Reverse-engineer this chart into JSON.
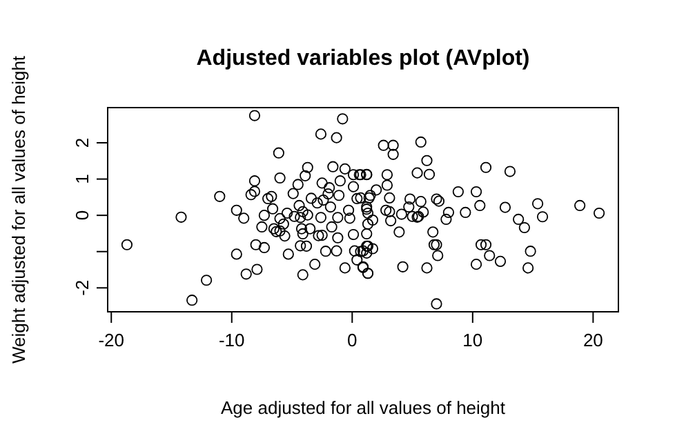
{
  "chart_data": {
    "type": "scatter",
    "title": "Adjusted variables plot (AVplot)",
    "xlabel": "Age adjusted for all values of height",
    "ylabel": "Weight adjusted for all values of height",
    "xlim": [
      -20.3,
      22.1
    ],
    "ylim": [
      -2.66,
      2.97
    ],
    "xticks": [
      -20,
      -10,
      0,
      10,
      20
    ],
    "yticks": [
      -2,
      {
        "value": -1,
        "label": null
      },
      0,
      1,
      2
    ],
    "grid": false,
    "marker": "circle",
    "x": [
      -18.7,
      -14.2,
      -13.3,
      -12.1,
      -11.0,
      -9.6,
      -9.6,
      -9.0,
      -8.8,
      -8.1,
      -8.1,
      -8.1,
      -8.4,
      -8.0,
      -7.9,
      -7.5,
      -7.3,
      -7.3,
      -7.0,
      -6.7,
      -6.6,
      -6.1,
      -6.0,
      -6.5,
      -6.3,
      -6.0,
      -5.6,
      -5.7,
      -6.0,
      -5.3,
      -5.4,
      -4.9,
      -4.8,
      -4.5,
      -4.4,
      -4.3,
      -4.2,
      -4.1,
      -4.3,
      -4.1,
      -3.9,
      -3.7,
      -3.8,
      -4.1,
      -3.7,
      -3.5,
      -3.4,
      -3.1,
      -2.9,
      -2.8,
      -2.5,
      -2.6,
      -2.6,
      -2.5,
      -2.4,
      -2.2,
      -2.0,
      -1.9,
      -1.8,
      -1.7,
      -1.6,
      -1.3,
      -1.3,
      -1.2,
      -1.2,
      -1.1,
      -1.0,
      -0.8,
      -0.6,
      -0.6,
      -0.3,
      -0.2,
      0.1,
      0.1,
      0.2,
      0.1,
      0.4,
      0.4,
      0.7,
      0.9,
      1.2,
      1.3,
      1.2,
      0.7,
      1.3,
      1.2,
      0.6,
      1.2,
      0.7,
      1.2,
      1.3,
      1.3,
      1.4,
      1.5,
      1.7,
      2.0,
      1.2,
      0.9,
      1.7,
      1.2,
      0.9,
      1.3,
      2.6,
      3.4,
      3.4,
      2.9,
      2.9,
      3.1,
      2.8,
      3.1,
      3.2,
      3.9,
      4.1,
      4.2,
      4.8,
      4.7,
      5.0,
      5.4,
      5.5,
      5.4,
      5.7,
      5.7,
      5.9,
      6.2,
      6.4,
      6.2,
      6.7,
      6.8,
      7.0,
      7.1,
      7.0,
      7.2,
      7.0,
      7.8,
      8.0,
      8.8,
      9.4,
      10.3,
      10.6,
      10.3,
      10.7,
      11.1,
      11.1,
      11.4,
      12.3,
      12.7,
      13.1,
      13.8,
      14.3,
      14.8,
      14.6,
      15.4,
      15.8,
      18.9,
      20.5
    ],
    "series": [
      {
        "values": [
          -0.81,
          -0.05,
          -2.34,
          -1.79,
          0.52,
          -1.07,
          0.14,
          -0.08,
          -1.62,
          2.75,
          0.95,
          0.66,
          0.57,
          -0.81,
          -1.49,
          -0.32,
          -0.89,
          0.0,
          0.46,
          0.52,
          0.18,
          1.72,
          1.03,
          -0.37,
          -0.45,
          -0.43,
          -0.57,
          -0.24,
          -0.09,
          -1.07,
          0.06,
          0.6,
          -0.03,
          0.85,
          0.27,
          -0.06,
          -0.37,
          -0.51,
          -0.84,
          -1.64,
          1.09,
          1.32,
          -0.85,
          0.1,
          0.01,
          -0.37,
          0.47,
          -1.35,
          0.34,
          -0.56,
          -0.55,
          2.24,
          -0.06,
          0.89,
          0.42,
          -0.99,
          0.59,
          0.76,
          0.23,
          -0.32,
          1.34,
          2.14,
          -0.98,
          -0.06,
          -0.62,
          0.55,
          0.95,
          2.66,
          1.28,
          -1.45,
          0.14,
          -0.08,
          1.12,
          0.79,
          -0.98,
          -0.53,
          -1.23,
          0.46,
          1.12,
          -1.44,
          1.13,
          -1.6,
          -1.04,
          -1.0,
          -0.85,
          0.17,
          1.12,
          1.12,
          0.48,
          0.23,
          0.06,
          -0.24,
          0.48,
          0.55,
          -0.13,
          0.7,
          -0.51,
          -0.98,
          -0.92,
          -0.85,
          -1.42,
          -1.6,
          1.93,
          1.93,
          1.68,
          1.12,
          0.83,
          0.48,
          0.14,
          0.1,
          -0.15,
          -0.46,
          0.03,
          -1.42,
          0.45,
          0.23,
          -0.03,
          -0.05,
          -0.03,
          1.17,
          2.02,
          0.38,
          0.09,
          1.51,
          1.13,
          -1.45,
          -0.46,
          -0.81,
          -0.81,
          -1.11,
          0.45,
          0.39,
          -2.44,
          -0.11,
          0.08,
          0.65,
          0.08,
          0.65,
          0.27,
          -1.35,
          -0.81,
          -0.81,
          1.32,
          -1.11,
          -1.27,
          0.22,
          1.21,
          -0.11,
          -0.34,
          -0.99,
          -1.45,
          0.32,
          -0.04,
          0.27,
          0.06
        ]
      }
    ]
  }
}
